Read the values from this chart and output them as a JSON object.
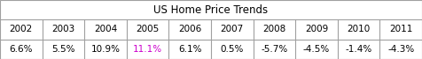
{
  "title": "US Home Price Trends",
  "years": [
    "2002",
    "2003",
    "2004",
    "2005",
    "2006",
    "2007",
    "2008",
    "2009",
    "2010",
    "2011"
  ],
  "values": [
    "6.6%",
    "5.5%",
    "10.9%",
    "11.1%",
    "6.1%",
    "0.5%",
    "-5.7%",
    "-4.5%",
    "-1.4%",
    "-4.3%"
  ],
  "value_colors": [
    "#000000",
    "#000000",
    "#000000",
    "#cc00cc",
    "#000000",
    "#000000",
    "#000000",
    "#000000",
    "#000000",
    "#000000"
  ],
  "bg_color": "#ffffff",
  "border_color": "#a0a0a0",
  "title_fontsize": 8.5,
  "cell_fontsize": 7.5,
  "figsize": [
    4.76,
    0.67
  ],
  "dpi": 100
}
